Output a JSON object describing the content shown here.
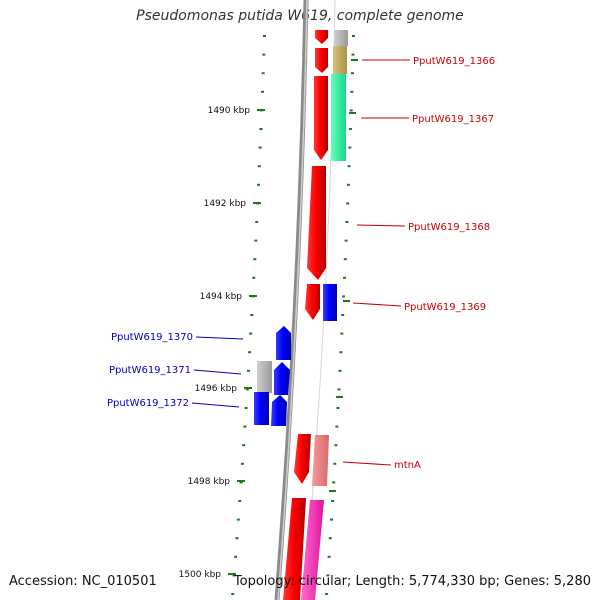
{
  "title": "Pseudomonas putida W619, complete genome",
  "accession": "Accession: NC_010501",
  "summary": "Topology: circular; Length: 5,774,330 bp; Genes: 5,280",
  "colors": {
    "forward_gene": "#ff0000",
    "reverse_gene": "#0000ff",
    "backbone": "#888888",
    "ticks": "#1a7a1a",
    "label_forward": "#cc0000",
    "label_reverse": "#0000bb"
  },
  "scale_ticks": [
    "1490 kbp",
    "1492 kbp",
    "1494 kbp",
    "1496 kbp",
    "1498 kbp",
    "1500 kbp"
  ],
  "genes": [
    {
      "label": "PputW619_1366",
      "strand": "forward"
    },
    {
      "label": "PputW619_1367",
      "strand": "forward"
    },
    {
      "label": "PputW619_1368",
      "strand": "forward"
    },
    {
      "label": "PputW619_1369",
      "strand": "forward"
    },
    {
      "label": "PputW619_1370",
      "strand": "reverse"
    },
    {
      "label": "PputW619_1371",
      "strand": "reverse"
    },
    {
      "label": "PputW619_1372",
      "strand": "reverse"
    },
    {
      "label": "mtnA",
      "strand": "forward"
    }
  ]
}
